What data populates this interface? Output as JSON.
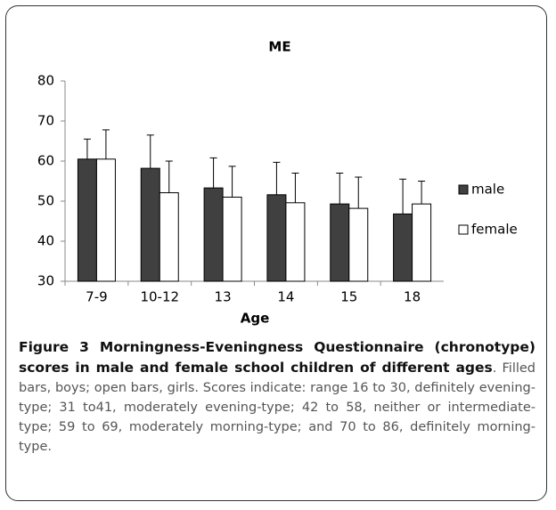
{
  "chart_data": {
    "type": "bar",
    "title": "ME",
    "x_label": "Age",
    "categories": [
      "7-9",
      "10-12",
      "13",
      "14",
      "15",
      "18"
    ],
    "series": [
      {
        "name": "male",
        "color": "#404040",
        "values": [
          60.5,
          58.2,
          53.3,
          51.6,
          49.3,
          46.8
        ],
        "errors": [
          5.0,
          8.3,
          7.5,
          8.1,
          7.7,
          8.7
        ]
      },
      {
        "name": "female",
        "color": "#ffffff",
        "values": [
          60.5,
          52.1,
          51.0,
          49.6,
          48.2,
          49.3
        ],
        "errors": [
          7.3,
          7.9,
          7.7,
          7.4,
          7.8,
          5.7
        ]
      }
    ],
    "ylim": [
      30,
      80
    ],
    "yticks": [
      30,
      40,
      50,
      60,
      70,
      80
    ],
    "grid": false,
    "legend": "right"
  },
  "figure": {
    "caption_title": "Figure 3 Morningness-Eveningness Questionnaire (chronotype) scores in male and female school children of different ages",
    "caption_text": "Filled bars, boys; open bars, girls. Scores indicate: range 16 to 30, definitely evening-type; 31 to41, moderately evening-type; 42 to 58, neither or intermediate-type; 59 to 69, moderately morning-type; and 70 to 86, definitely morning-type."
  }
}
